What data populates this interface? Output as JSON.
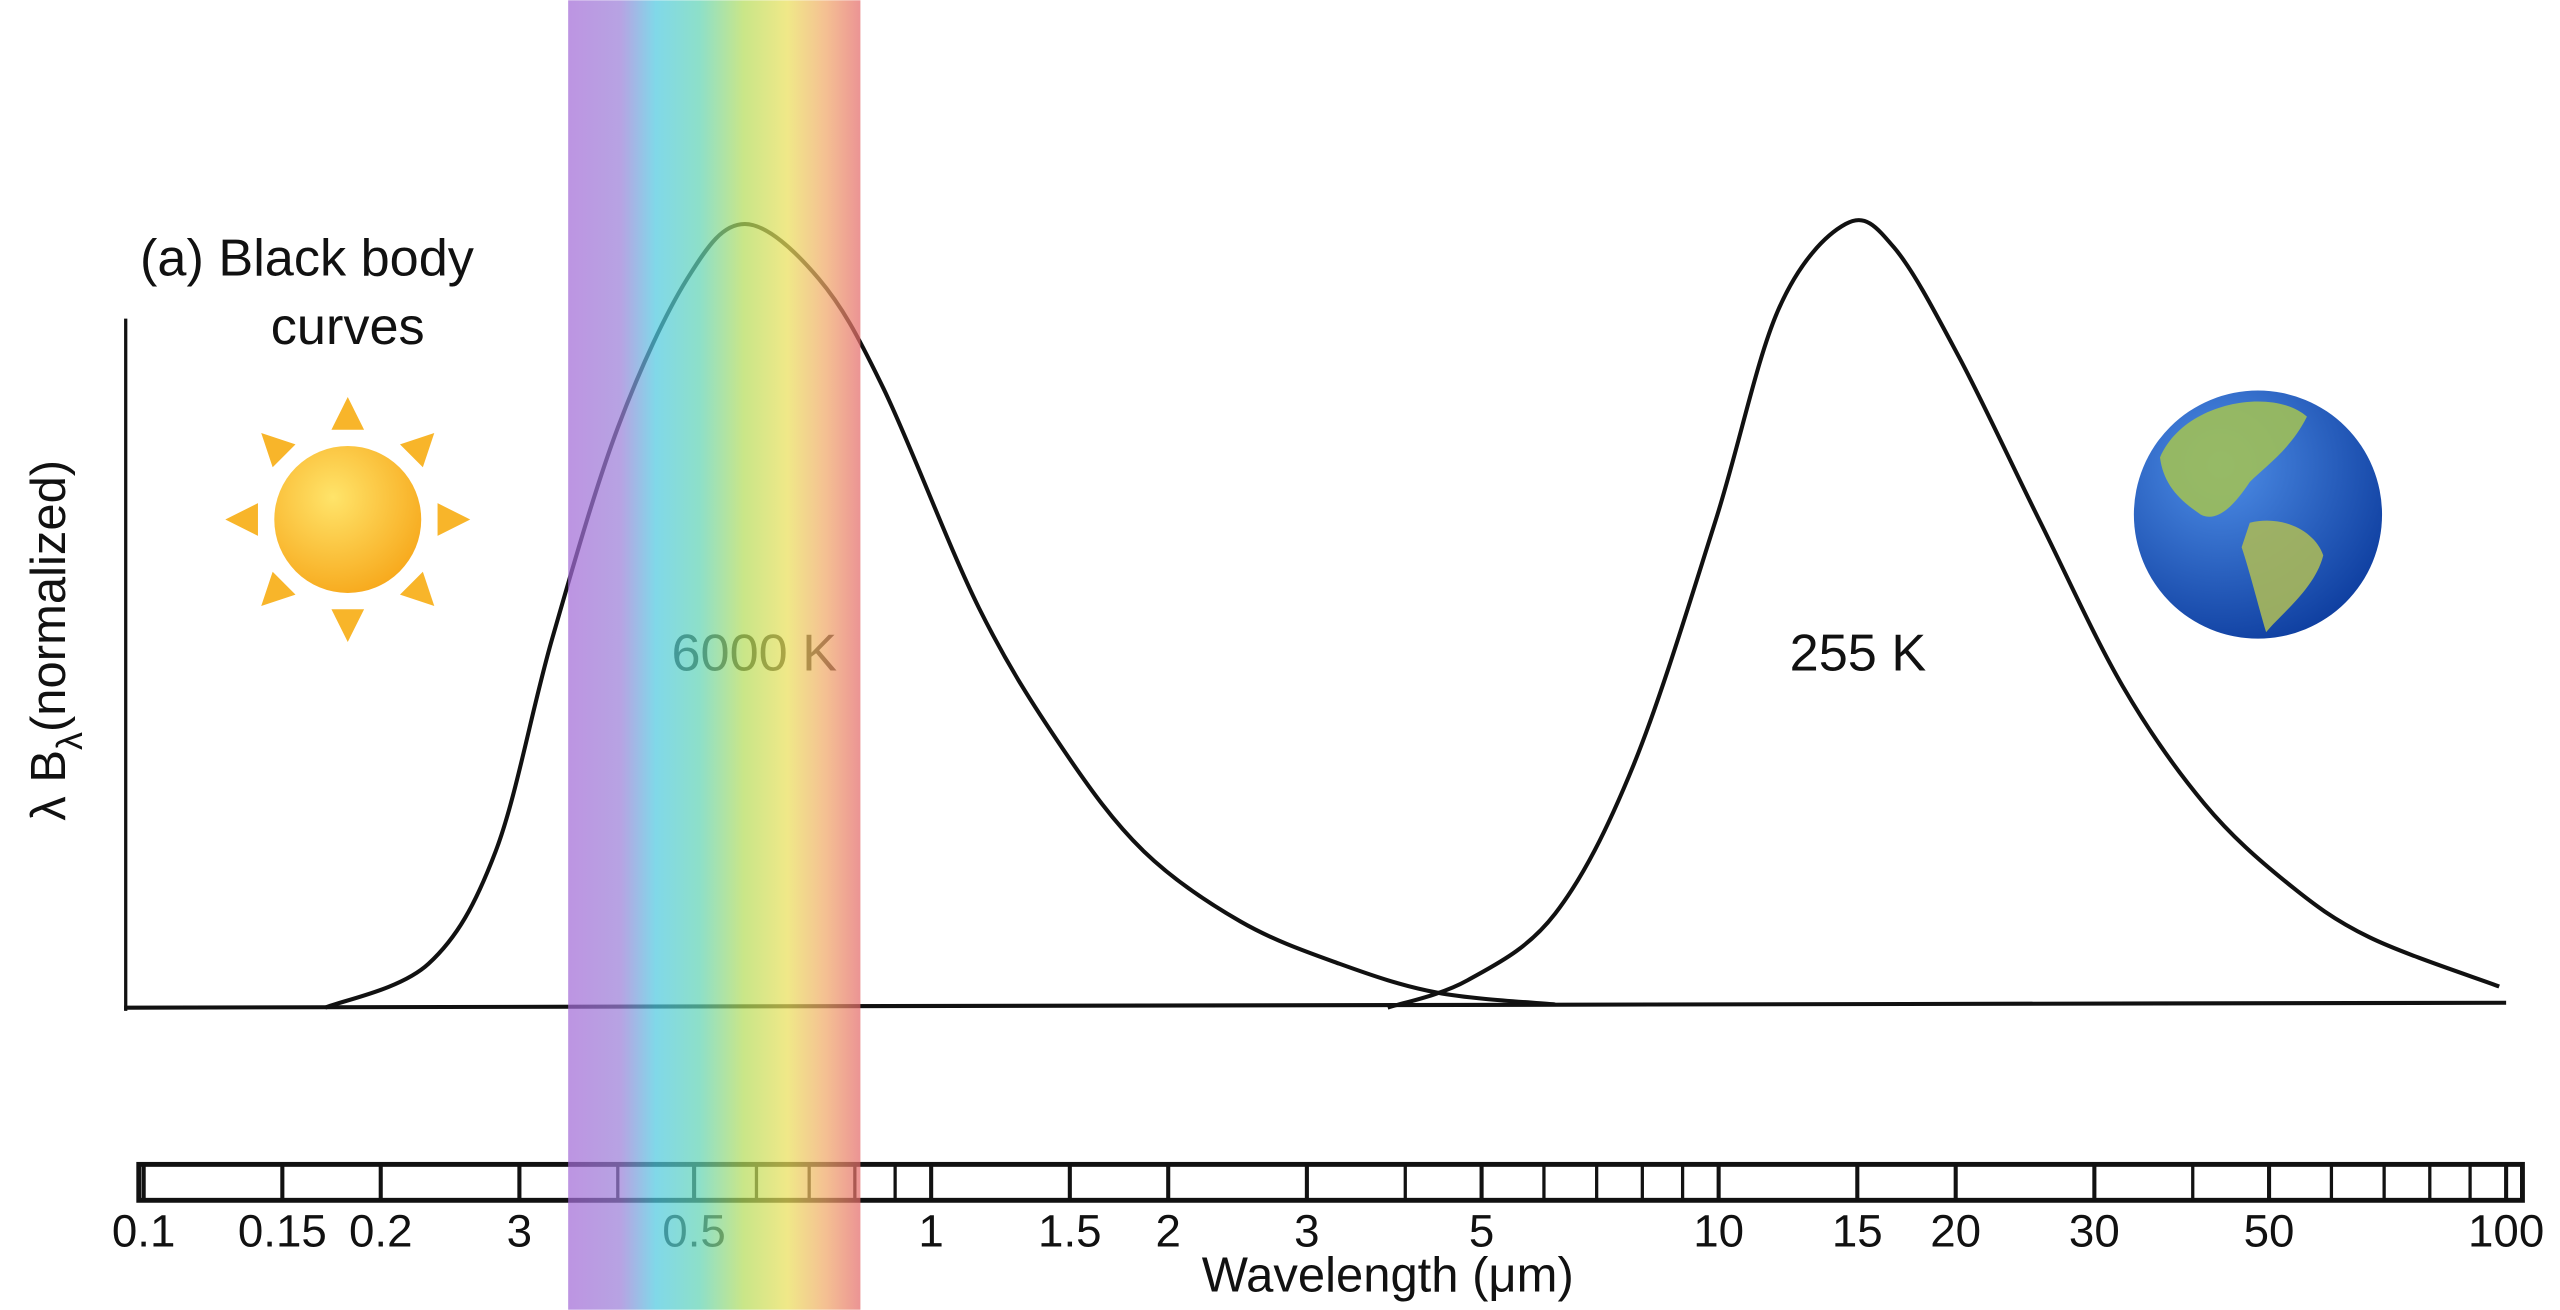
{
  "chart_data": {
    "type": "line",
    "title_lines": [
      "(a) Black body",
      "curves"
    ],
    "ylabel": "λ B",
    "ylabel_sub": "λ",
    "ylabel_rest": "(normalized)",
    "xlabel": "Wavelength (μm)",
    "xscale": "log",
    "xlim": [
      0.1,
      100
    ],
    "ylim": [
      0,
      1
    ],
    "xticks": [
      0.1,
      0.15,
      0.2,
      {
        "value": 0.3,
        "label": "3"
      },
      0.5,
      1,
      1.5,
      2,
      3,
      5,
      10,
      15,
      20,
      30,
      50,
      100
    ],
    "minor_xticks": [
      0.4,
      0.6,
      0.7,
      0.8,
      0.9,
      4,
      6,
      7,
      8,
      9,
      40,
      60,
      70,
      80,
      90
    ],
    "series": [
      {
        "name": "6000 K",
        "color": "#111111",
        "x": [
          0.17,
          0.23,
          0.28,
          0.33,
          0.4,
          0.49,
          0.58,
          0.72,
          0.87,
          1.15,
          1.47,
          1.86,
          2.47,
          3.3,
          4.4,
          6.2
        ],
        "values": [
          0,
          0.056,
          0.2,
          0.47,
          0.74,
          0.93,
          1.0,
          0.93,
          0.79,
          0.51,
          0.33,
          0.2,
          0.11,
          0.056,
          0.019,
          0.004
        ]
      },
      {
        "name": "255 K",
        "color": "#111111",
        "x": [
          3.8,
          4.8,
          6.2,
          7.8,
          9.9,
          11.9,
          14.5,
          16.7,
          20.2,
          25.6,
          32.6,
          41.4,
          52.6,
          67,
          98
        ],
        "values": [
          0,
          0.035,
          0.12,
          0.31,
          0.62,
          0.89,
          1.0,
          0.97,
          0.83,
          0.62,
          0.41,
          0.26,
          0.16,
          0.09,
          0.027
        ]
      }
    ]
  }
}
